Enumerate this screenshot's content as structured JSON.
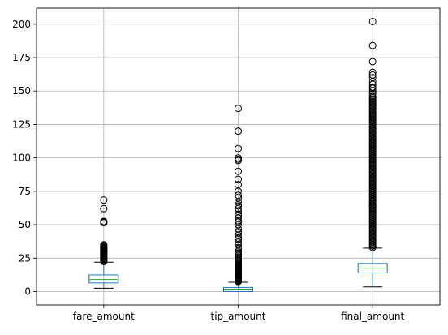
{
  "chart_data": {
    "type": "box",
    "title": "",
    "xlabel": "",
    "ylabel": "",
    "categories": [
      "fare_amount",
      "tip_amount",
      "final_amount"
    ],
    "ylim": [
      -10,
      212
    ],
    "yticks": [
      0,
      25,
      50,
      75,
      100,
      125,
      150,
      175,
      200
    ],
    "grid": true,
    "colors": {
      "box": "#1f77b4",
      "median": "#2ca02c",
      "whisker": "#000000",
      "flier": "#000000",
      "grid": "#b0b0b0"
    },
    "boxes": [
      {
        "name": "fare_amount",
        "whisker_low": 2.5,
        "q1": 6.5,
        "median": 9,
        "q3": 12.5,
        "whisker_high": 22,
        "outliers": [
          22.5,
          23,
          23.5,
          24,
          24.5,
          25,
          25.5,
          26,
          26.5,
          27,
          27.5,
          28,
          28.5,
          29,
          29.5,
          30,
          30.5,
          31,
          31.5,
          32,
          32.5,
          33,
          33.5,
          34,
          34.5,
          35,
          51.5,
          52,
          52.5,
          62,
          68.5
        ]
      },
      {
        "name": "tip_amount",
        "whisker_low": 0,
        "q1": 0,
        "median": 1.8,
        "q3": 3,
        "whisker_high": 7,
        "outliers": [
          7.5,
          8,
          8.5,
          9,
          9.5,
          10,
          10.5,
          11,
          11.5,
          12,
          12.5,
          13,
          13.5,
          14,
          14.5,
          15,
          15.5,
          16,
          16.5,
          17,
          17.5,
          18,
          18.5,
          19,
          19.5,
          20,
          21,
          22,
          23,
          24,
          25,
          26,
          27,
          28,
          29,
          30,
          32,
          33,
          35,
          37,
          39,
          40,
          42,
          44,
          45,
          47,
          50,
          52,
          53,
          55,
          57,
          58,
          60,
          62,
          64,
          65,
          67,
          70,
          72,
          75,
          80,
          84,
          90,
          98,
          99,
          100,
          107,
          120,
          137
        ]
      },
      {
        "name": "final_amount",
        "whisker_low": 3.5,
        "q1": 14,
        "median": 17.5,
        "q3": 21,
        "whisker_high": 32.5,
        "outliers": [
          33,
          34,
          35,
          36,
          37,
          38,
          39,
          40,
          41,
          42,
          43,
          44,
          45,
          46,
          47,
          48,
          49,
          50,
          51,
          52,
          53,
          54,
          55,
          56,
          57,
          58,
          59,
          60,
          61,
          62,
          63,
          64,
          65,
          66,
          67,
          68,
          69,
          70,
          71,
          72,
          73,
          74,
          75,
          76,
          77,
          78,
          79,
          80,
          81,
          82,
          83,
          84,
          85,
          86,
          87,
          88,
          89,
          90,
          91,
          92,
          93,
          94,
          95,
          96,
          97,
          98,
          99,
          100,
          101,
          102,
          103,
          104,
          105,
          106,
          107,
          108,
          109,
          110,
          111,
          112,
          113,
          114,
          115,
          116,
          117,
          118,
          119,
          120,
          121,
          122,
          123,
          124,
          125,
          126,
          127,
          128,
          129,
          130,
          131,
          132,
          133,
          134,
          135,
          136,
          137,
          138,
          139,
          140,
          141,
          142,
          143,
          144,
          145,
          146,
          148,
          150,
          152,
          153,
          155,
          157,
          160,
          162,
          164,
          172,
          184,
          202
        ]
      }
    ]
  }
}
